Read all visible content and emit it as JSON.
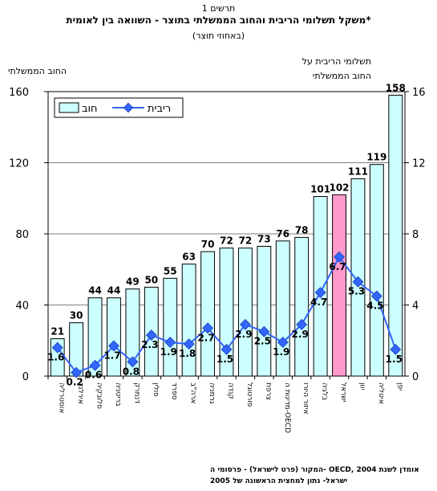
{
  "figure_number": "תרשים 1",
  "title": "משקל תשלומי הריבית והחוב הממשלתי בתוצר - השוואה בין לאומית*",
  "subtitle": "(באחוזי תוצר)",
  "left_axis_title": "החוב הממשלתי",
  "right_axis_title_line1": "תשלומי הריבית על",
  "right_axis_title_line2": "החוב הממשלתי",
  "source_line1": "המקור (פרט לישראל) - פרסומי ה- OECD, אומדן לשנת 2004",
  "source_line2": "ישראל- נתון למחצית הראשונה של 2005",
  "colors": {
    "bar_fill": "#ccffff",
    "highlight_fill": "#ff99cc",
    "line": "#3366ff",
    "marker": "#3366ff"
  },
  "chart_data": {
    "type": "bar",
    "categories": [
      "אוסטרליה",
      "אירלנד",
      "סלובקיה",
      "בריטניה",
      "דנמרק",
      "פולין",
      "ספרד",
      "ארה\"ב",
      "גרמניה",
      "קנדה",
      "פורטוגל",
      "צרפת",
      "מדינות ה-OECD",
      "איזור היורו",
      "בלגיה",
      "ישראל",
      "יוון",
      "איטליה",
      "יפן"
    ],
    "highlight_category": "ישראל",
    "series": [
      {
        "name": "חוב",
        "type": "bar",
        "axis": "left",
        "values": [
          21,
          30,
          44,
          44,
          49,
          50,
          55,
          63,
          70,
          72,
          72,
          73,
          76,
          78,
          101,
          102,
          111,
          119,
          158
        ]
      },
      {
        "name": "ריבית",
        "type": "line",
        "axis": "right",
        "values": [
          1.6,
          0.2,
          0.6,
          1.7,
          0.8,
          2.3,
          1.9,
          1.8,
          2.7,
          1.5,
          2.9,
          2.5,
          1.9,
          2.9,
          4.7,
          6.7,
          5.3,
          4.5,
          1.5
        ]
      }
    ],
    "left_axis": {
      "min": 0,
      "max": 160,
      "ticks": [
        0,
        40,
        80,
        120,
        160
      ]
    },
    "right_axis": {
      "min": 0,
      "max": 16,
      "ticks": [
        0,
        4,
        8,
        12,
        16
      ]
    },
    "legend": {
      "placement": "top-left",
      "entries": [
        "חוב",
        "ריבית"
      ]
    },
    "grid": "horizontal"
  }
}
